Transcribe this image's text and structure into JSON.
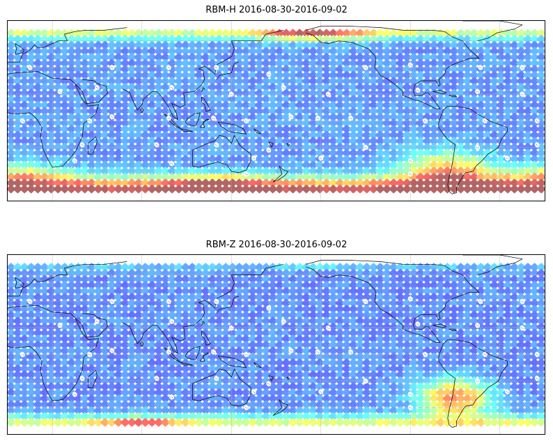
{
  "panels": [
    {
      "title": "RBM-H 2016-08-30-2016-09-02",
      "field": {
        "base": 0.22,
        "bands": [
          {
            "lat_center": -53,
            "lat_width": 10,
            "strength": 0.75
          },
          {
            "lat_center": 67,
            "lat_width": 6,
            "strength": 0.35
          }
        ],
        "hotspots": [
          {
            "lon": 195,
            "lat": 68,
            "rlon": 40,
            "rlat": 8,
            "strength": 0.45
          },
          {
            "lon": 285,
            "lat": -40,
            "rlon": 30,
            "rlat": 16,
            "strength": 0.55
          },
          {
            "lon": 0,
            "lat": -42,
            "rlon": 35,
            "rlat": 10,
            "strength": 0.35
          },
          {
            "lon": 130,
            "lat": -48,
            "rlon": 35,
            "rlat": 8,
            "strength": 0.3
          }
        ]
      }
    },
    {
      "title": "RBM-Z 2016-08-30-2016-09-02",
      "field": {
        "base": 0.2,
        "bands": [
          {
            "lat_center": -54,
            "lat_width": 8,
            "strength": 0.42
          },
          {
            "lat_center": 69,
            "lat_width": 5,
            "strength": 0.12
          }
        ],
        "hotspots": [
          {
            "lon": 290,
            "lat": -33,
            "rlon": 24,
            "rlat": 14,
            "strength": 0.62
          },
          {
            "lon": 80,
            "lat": -54,
            "rlon": 25,
            "rlat": 5,
            "strength": 0.45
          },
          {
            "lon": 200,
            "lat": 70,
            "rlon": 25,
            "rlat": 4,
            "strength": 0.2
          }
        ]
      }
    }
  ],
  "map": {
    "lon_range": [
      -10,
      350
    ],
    "lat_range": [
      -60,
      75
    ],
    "gridlines_lon": [
      20,
      80,
      140,
      200,
      260,
      320
    ],
    "gridlines_lat": [
      -40,
      -20,
      0,
      20,
      40,
      60
    ],
    "colormap": "jet",
    "alpha": 0.6
  },
  "icons": {
    "station_marker": "station-marker-icon"
  }
}
